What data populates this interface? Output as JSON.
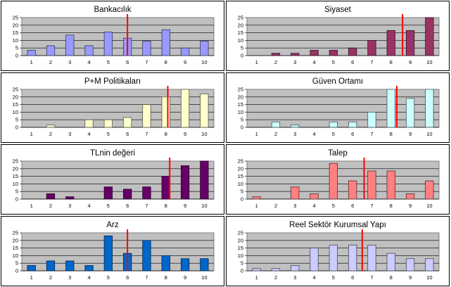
{
  "chart_data": [
    {
      "type": "bar",
      "title": "Bankacılık",
      "categories": [
        "1",
        "2",
        "3",
        "4",
        "5",
        "6",
        "7",
        "8",
        "9",
        "10"
      ],
      "values": [
        3.5,
        6.5,
        13.5,
        6.5,
        15.5,
        11.5,
        9.5,
        17,
        5,
        9.5
      ],
      "ylim": [
        0,
        25
      ],
      "yticks": [
        "0",
        "5",
        "10",
        "15",
        "20",
        "25"
      ],
      "marker_x": 6.0,
      "bar_color": "#9999ff"
    },
    {
      "type": "bar",
      "title": "Siyaset",
      "categories": [
        "1",
        "2",
        "3",
        "4",
        "5",
        "6",
        "7",
        "8",
        "9",
        "10"
      ],
      "values": [
        0,
        1.5,
        1.5,
        3.5,
        3.5,
        5,
        10,
        16.5,
        16.5,
        25
      ],
      "ylim": [
        0,
        25
      ],
      "yticks": [
        "0",
        "5",
        "10",
        "15",
        "20",
        "25"
      ],
      "marker_x": 8.6,
      "bar_color": "#993366"
    },
    {
      "type": "bar",
      "title": "P+M Politikaları",
      "categories": [
        "1",
        "2",
        "3",
        "4",
        "5",
        "6",
        "7",
        "8",
        "9",
        "10"
      ],
      "values": [
        0,
        1.5,
        0,
        5,
        5,
        6.5,
        15,
        20,
        25,
        22
      ],
      "ylim": [
        0,
        25
      ],
      "yticks": [
        "0",
        "5",
        "10",
        "15",
        "20",
        "25"
      ],
      "marker_x": 8.1,
      "bar_color": "#ffffcc"
    },
    {
      "type": "bar",
      "title": "Güven Ortamı",
      "categories": [
        "1",
        "2",
        "3",
        "4",
        "5",
        "6",
        "7",
        "8",
        "9",
        "10"
      ],
      "values": [
        0,
        3.5,
        1.5,
        0,
        3.5,
        3.5,
        10,
        25,
        19,
        25
      ],
      "ylim": [
        0,
        25
      ],
      "yticks": [
        "0",
        "5",
        "10",
        "15",
        "20",
        "25"
      ],
      "marker_x": 8.3,
      "bar_color": "#ccffff"
    },
    {
      "type": "bar",
      "title": "TLnin değeri",
      "categories": [
        "1",
        "2",
        "3",
        "4",
        "5",
        "6",
        "7",
        "8",
        "9",
        "10"
      ],
      "values": [
        0,
        3.5,
        1.5,
        0,
        8,
        6.5,
        8,
        15,
        22,
        25
      ],
      "ylim": [
        0,
        25
      ],
      "yticks": [
        "0",
        "5",
        "10",
        "15",
        "20",
        "25"
      ],
      "marker_x": 8.2,
      "bar_color": "#660066"
    },
    {
      "type": "bar",
      "title": "Talep",
      "categories": [
        "1",
        "2",
        "3",
        "4",
        "5",
        "6",
        "7",
        "8",
        "9",
        "10"
      ],
      "values": [
        1.5,
        0,
        8,
        3.5,
        23.5,
        12,
        18.5,
        18.5,
        3.5,
        12
      ],
      "ylim": [
        0,
        25
      ],
      "yticks": [
        "0",
        "5",
        "10",
        "15",
        "20",
        "25"
      ],
      "marker_x": 6.6,
      "bar_color": "#ff8080"
    },
    {
      "type": "bar",
      "title": "Arz",
      "categories": [
        "1",
        "2",
        "3",
        "4",
        "5",
        "6",
        "7",
        "8",
        "9",
        "10"
      ],
      "values": [
        3.5,
        6.5,
        6.5,
        3.5,
        23,
        11.5,
        20,
        10,
        8,
        8
      ],
      "ylim": [
        0,
        25
      ],
      "yticks": [
        "0",
        "5",
        "10",
        "15",
        "20",
        "25"
      ],
      "marker_x": 6.0,
      "bar_color": "#0066cc"
    },
    {
      "type": "bar",
      "title": "Reel Sektör Kurumsal Yapı",
      "categories": [
        "1",
        "2",
        "3",
        "4",
        "5",
        "6",
        "7",
        "8",
        "9",
        "10"
      ],
      "values": [
        1.5,
        1.5,
        3.5,
        15,
        17,
        17,
        17,
        11.5,
        8,
        8
      ],
      "ylim": [
        0,
        25
      ],
      "yticks": [
        "0",
        "5",
        "10",
        "15",
        "20",
        "25"
      ],
      "marker_x": 6.5,
      "bar_color": "#ccccff"
    }
  ]
}
